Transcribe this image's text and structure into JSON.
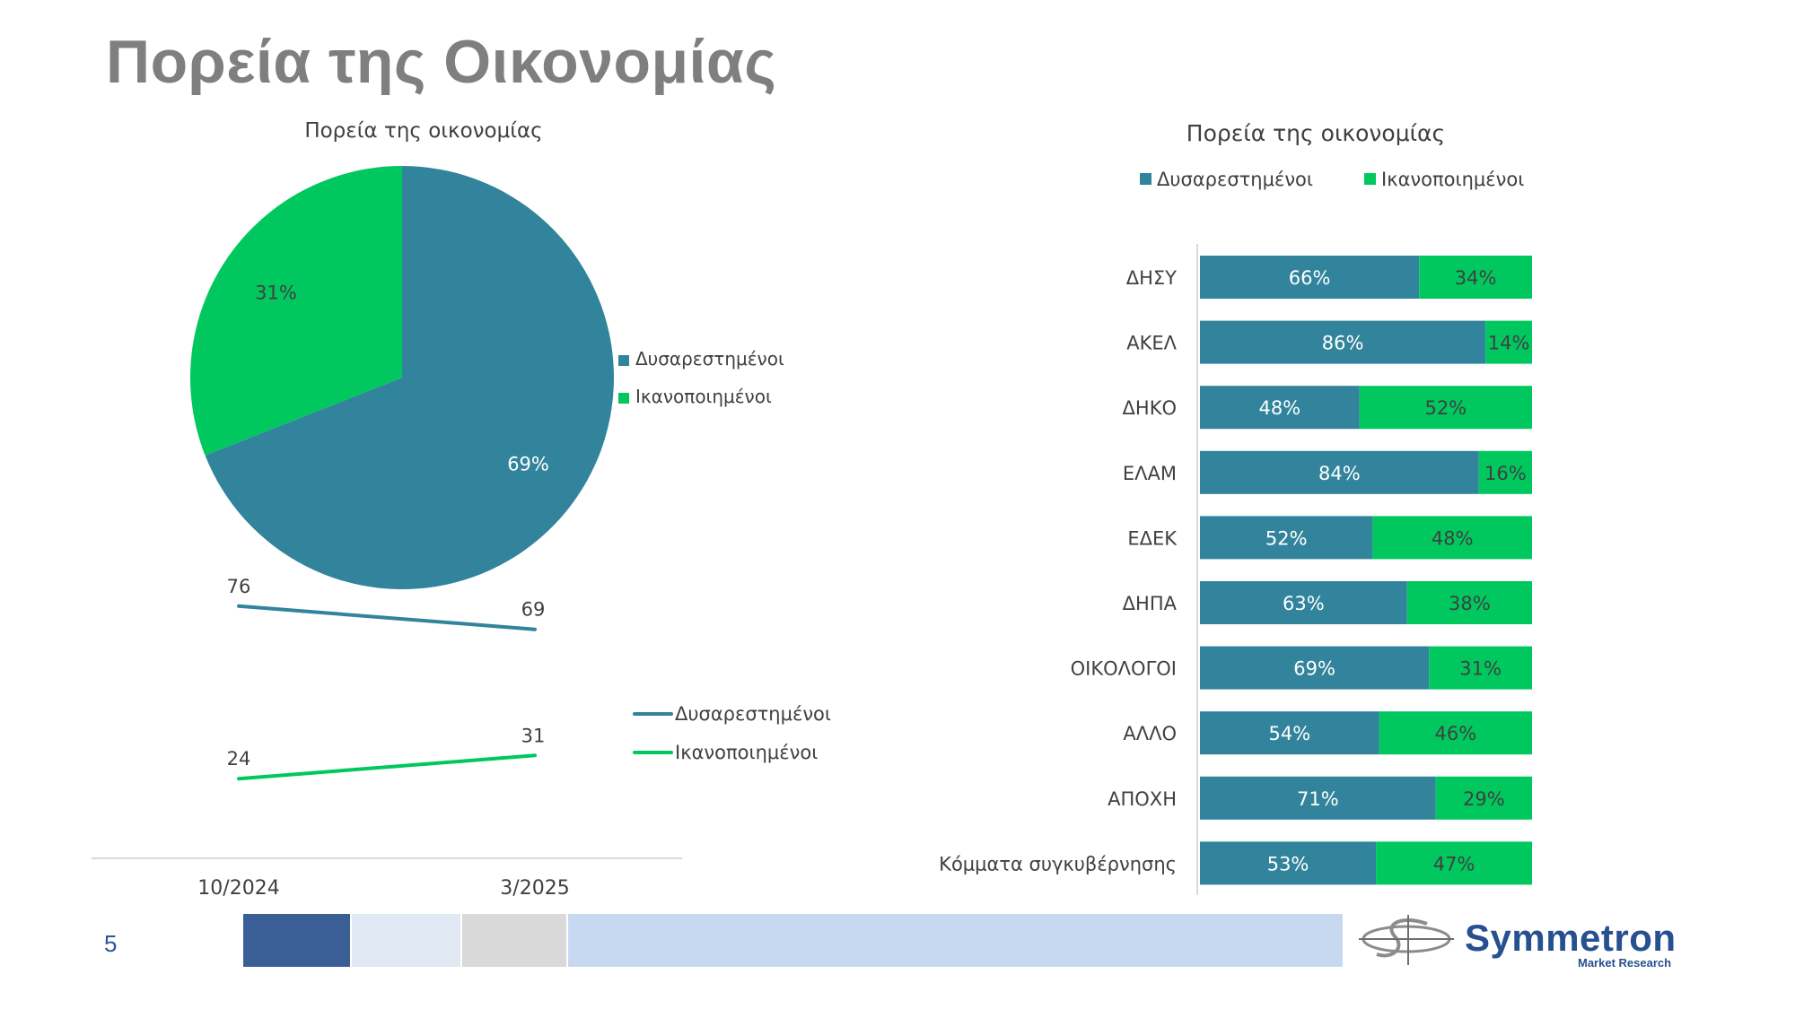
{
  "slide": {
    "title": "Πορεία της Οικονομίας",
    "page_number": "5"
  },
  "footer": {
    "colors": [
      "#3a5f96",
      "#dfe8f3",
      "#d9d9d9",
      "#c6d9f0"
    ],
    "logo_name": "Symmetron",
    "logo_tagline": "Market Research"
  },
  "colors": {
    "dissatisfied": "#31849b",
    "satisfied": "#00c85f",
    "axis_text": "#404040"
  },
  "chart_data": [
    {
      "type": "pie",
      "title": "Πορεία της οικονομίας",
      "categories": [
        "Δυσαρεστημένοι",
        "Ικανοποιημένοι"
      ],
      "values": [
        69,
        31
      ],
      "data_labels": [
        "69%",
        "31%"
      ],
      "legend": "right"
    },
    {
      "type": "line",
      "x": [
        "10/2024",
        "3/2025"
      ],
      "series": [
        {
          "name": "Δυσαρεστημένοι",
          "values": [
            76,
            69
          ]
        },
        {
          "name": "Ικανοποιημένοι",
          "values": [
            24,
            31
          ]
        }
      ],
      "ylim": [
        0,
        100
      ],
      "legend": "right"
    },
    {
      "type": "bar",
      "orientation": "horizontal",
      "stacked": true,
      "title": "Πορεία της οικονομίας",
      "categories": [
        "ΔΗΣΥ",
        "ΑΚΕΛ",
        "ΔΗΚΟ",
        "ΕΛΑΜ",
        "ΕΔΕΚ",
        "ΔΗΠΑ",
        "ΟΙΚΟΛΟΓΟΙ",
        "ΑΛΛΟ",
        "ΑΠΟΧΗ",
        "Κόμματα συγκυβέρνησης"
      ],
      "series": [
        {
          "name": "Δυσαρεστημένοι",
          "values": [
            66,
            86,
            48,
            84,
            52,
            63,
            69,
            54,
            71,
            53
          ]
        },
        {
          "name": "Ικανοποιημένοι",
          "values": [
            34,
            14,
            52,
            16,
            48,
            38,
            31,
            46,
            29,
            47
          ]
        }
      ],
      "xlim": [
        0,
        100
      ],
      "legend": "top"
    }
  ]
}
